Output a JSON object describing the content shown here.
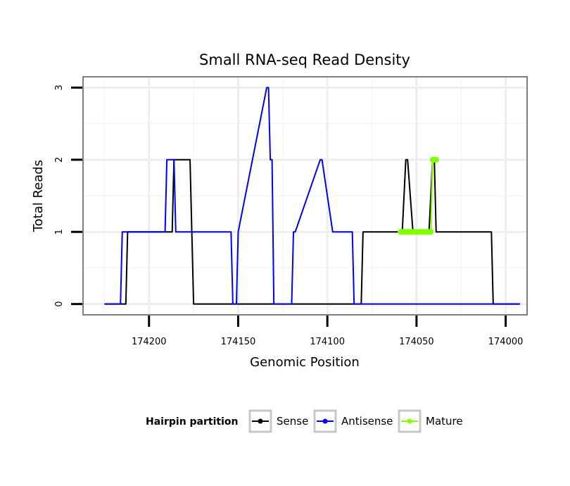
{
  "chart_data": {
    "type": "line",
    "title": "Small RNA-seq Read Density",
    "xlabel": "Genomic Position",
    "ylabel": "Total Reads",
    "x_reversed": true,
    "xlim": [
      174237,
      173988
    ],
    "ylim": [
      -0.15,
      3.15
    ],
    "x_ticks": [
      174200,
      174150,
      174100,
      174050,
      174000
    ],
    "x_tick_labels": [
      "174200",
      "174150",
      "174100",
      "174050",
      "174000"
    ],
    "y_ticks": [
      0,
      1,
      2,
      3
    ],
    "y_tick_labels": [
      "0",
      "1",
      "2",
      "3"
    ],
    "grid": true,
    "legend": {
      "title": "Hairpin partition",
      "position": "bottom",
      "entries": [
        {
          "name": "Sense",
          "color": "#000000"
        },
        {
          "name": "Antisense",
          "color": "#0000ff"
        },
        {
          "name": "Mature",
          "color": "#80ff00"
        }
      ]
    },
    "series": [
      {
        "name": "Sense",
        "color": "#000000",
        "x": [
          174225,
          174213,
          174212,
          174208,
          174207,
          174206,
          174205,
          174187,
          174186,
          174185,
          174183,
          174178,
          174177,
          174176,
          174175,
          174161,
          174160,
          174140,
          174122,
          174121,
          174120,
          174102,
          174082,
          174081,
          174080,
          174063,
          174062,
          174059,
          174058,
          174056,
          174055,
          174052,
          174051,
          174044,
          174043,
          174041,
          174040,
          174039,
          174038,
          174017,
          174016,
          174008,
          174007,
          174006,
          173992
        ],
        "y": [
          0,
          0,
          1,
          1,
          1,
          1,
          1,
          1,
          2,
          2,
          2,
          2,
          2,
          1,
          0,
          0,
          0,
          0,
          0,
          0,
          0,
          0,
          0,
          0,
          1,
          1,
          1,
          1,
          1,
          2,
          2,
          1,
          1,
          1,
          1,
          2,
          2,
          1,
          1,
          1,
          1,
          1,
          0,
          0,
          0
        ]
      },
      {
        "name": "Antisense",
        "color": "#0000ff",
        "x": [
          174225,
          174216,
          174215,
          174191,
          174190,
          174187,
          174186,
          174185,
          174183,
          174182,
          174181,
          174178,
          174154,
          174153,
          174152,
          174151,
          174150,
          174134,
          174133,
          174132,
          174131,
          174130,
          174129,
          174120,
          174119,
          174118,
          174104,
          174103,
          174097,
          174096,
          174086,
          174085,
          174061,
          174060,
          174057,
          174056,
          174055,
          174044,
          174043,
          174037,
          174036,
          174008,
          174007,
          173992
        ],
        "y": [
          0,
          0,
          1,
          1,
          2,
          2,
          2,
          1,
          1,
          1,
          1,
          1,
          1,
          0,
          0,
          0,
          1,
          3,
          3,
          2,
          2,
          0,
          0,
          0,
          1,
          1,
          2,
          2,
          1,
          1,
          1,
          0,
          0,
          0,
          0,
          0,
          0,
          0,
          0,
          0,
          0,
          0,
          0,
          0
        ]
      },
      {
        "name": "Mature",
        "color": "#80ff00",
        "x": [
          174059,
          174042,
          174041,
          174039
        ],
        "y": [
          1,
          1,
          2,
          2
        ]
      }
    ]
  }
}
